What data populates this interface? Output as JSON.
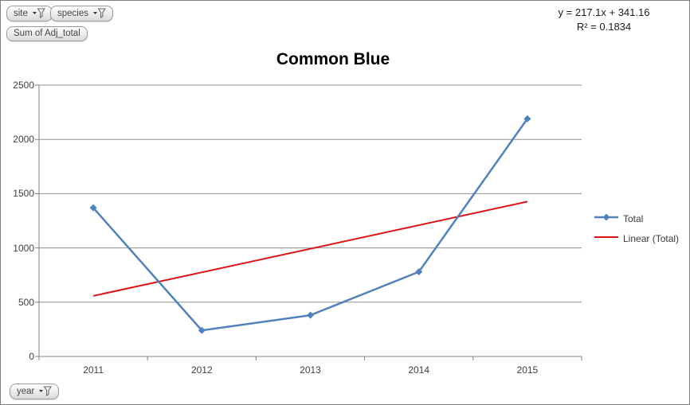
{
  "pivot_buttons": {
    "site": "site",
    "species": "species",
    "value_field": "Sum of Adj_total",
    "axis_field": "year"
  },
  "equation": {
    "line1": "y = 217.1x + 341.16",
    "line2": "R² = 0.1834"
  },
  "chart_data": {
    "type": "line",
    "title": "Common Blue",
    "categories": [
      "2011",
      "2012",
      "2013",
      "2014",
      "2015"
    ],
    "series": [
      {
        "name": "Total",
        "values": [
          1370,
          240,
          380,
          780,
          2190
        ],
        "color": "#4F81BD",
        "marker": "diamond"
      }
    ],
    "trendline": {
      "name": "Linear (Total)",
      "slope": 217.1,
      "intercept": 341.16,
      "color": "#DD1414"
    },
    "xlabel": "",
    "ylabel": "",
    "ylim": [
      0,
      2500
    ],
    "y_ticks": [
      0,
      500,
      1000,
      1500,
      2000,
      2500
    ],
    "grid": true,
    "legend_position": "right",
    "colors": {
      "grid": "#8f8f8f",
      "axis": "#808080"
    }
  }
}
